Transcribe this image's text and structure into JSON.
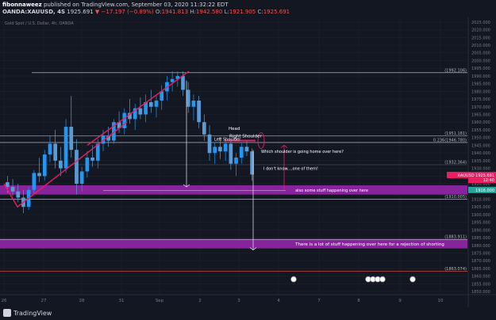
{
  "header": {
    "author": "fibonnaweez",
    "published": "published on TradingView.com, September 03, 2020 11:32:22 EDT",
    "symbol": "OANDA:XAUUSD, 4S",
    "price": "1925.691",
    "change": "▼ −17.197 (−0.89%)",
    "o_label": "O:",
    "o_value": "1941.813",
    "h_label": "H:",
    "h_value": "1942.580",
    "l_label": "L:",
    "l_value": "1921.905",
    "c_label": "C:",
    "c_value": "1925.691"
  },
  "chart_data": {
    "type": "candlestick",
    "title": "Gold Spot / U.S. Dollar, 4h, OANDA",
    "x_labels": [
      "26",
      "27",
      "28",
      "31",
      "Sep",
      "2",
      "3",
      "4",
      "7",
      "8",
      "9",
      "10"
    ],
    "y_ticks": [
      1850,
      1855,
      1860,
      1865,
      1870,
      1875,
      1880,
      1885,
      1890,
      1895,
      1900,
      1905,
      1910,
      1915,
      1920,
      1925,
      1930,
      1935,
      1940,
      1945,
      1950,
      1955,
      1960,
      1965,
      1970,
      1975,
      1980,
      1985,
      1990,
      1995,
      2000,
      2005,
      2010,
      2015,
      2020,
      2025
    ],
    "ylim": [
      1848,
      2028
    ],
    "grid": true,
    "levels": [
      {
        "price": 1992.106,
        "label": "(1992.106)"
      },
      {
        "price": 1951.181,
        "label": "(1951.181)"
      },
      {
        "price": 1946.78,
        "label": "0.236(1946.780)"
      },
      {
        "price": 1932.364,
        "label": "(1932.364)"
      },
      {
        "price": 1910.005,
        "label": "(1910.005)"
      },
      {
        "price": 1883.911,
        "label": "(1883.911)"
      },
      {
        "price": 1863.074,
        "label": "(1863.074)"
      }
    ],
    "zones": [
      {
        "top": 1919,
        "bottom": 1913,
        "label": "also some stuff happening over here"
      },
      {
        "top": 1884,
        "bottom": 1878,
        "label": "There is a lot of stuff happening over here for a rejection of shorting"
      }
    ],
    "annotations": [
      {
        "text": "Head"
      },
      {
        "text": "Right Shoulder"
      },
      {
        "text": "Left Shoulder"
      },
      {
        "text": "Which shoulder is going home over here?"
      },
      {
        "text": "I don't know....one of them!"
      }
    ],
    "price_badges": [
      {
        "label": "XAUUSD",
        "value": "1925.691",
        "color": "#e91e63"
      },
      {
        "label": "",
        "value": "12:40",
        "color": "#e91e63"
      },
      {
        "label": "",
        "value": "1916.000",
        "color": "#26a69a"
      }
    ],
    "candles": [
      {
        "o": 1921,
        "h": 1925,
        "l": 1914,
        "c": 1918
      },
      {
        "o": 1918,
        "h": 1923,
        "l": 1912,
        "c": 1915
      },
      {
        "o": 1915,
        "h": 1920,
        "l": 1908,
        "c": 1911
      },
      {
        "o": 1911,
        "h": 1916,
        "l": 1901,
        "c": 1905
      },
      {
        "o": 1905,
        "h": 1918,
        "l": 1903,
        "c": 1916
      },
      {
        "o": 1916,
        "h": 1929,
        "l": 1914,
        "c": 1927
      },
      {
        "o": 1927,
        "h": 1937,
        "l": 1921,
        "c": 1925
      },
      {
        "o": 1925,
        "h": 1942,
        "l": 1922,
        "c": 1939
      },
      {
        "o": 1939,
        "h": 1951,
        "l": 1934,
        "c": 1946
      },
      {
        "o": 1946,
        "h": 1955,
        "l": 1930,
        "c": 1935
      },
      {
        "o": 1935,
        "h": 1944,
        "l": 1925,
        "c": 1930
      },
      {
        "o": 1930,
        "h": 1962,
        "l": 1927,
        "c": 1957
      },
      {
        "o": 1957,
        "h": 1977,
        "l": 1937,
        "c": 1942
      },
      {
        "o": 1942,
        "h": 1949,
        "l": 1913,
        "c": 1920
      },
      {
        "o": 1920,
        "h": 1931,
        "l": 1915,
        "c": 1928
      },
      {
        "o": 1928,
        "h": 1941,
        "l": 1924,
        "c": 1937
      },
      {
        "o": 1937,
        "h": 1945,
        "l": 1931,
        "c": 1935
      },
      {
        "o": 1935,
        "h": 1949,
        "l": 1930,
        "c": 1946
      },
      {
        "o": 1946,
        "h": 1955,
        "l": 1941,
        "c": 1951
      },
      {
        "o": 1951,
        "h": 1957,
        "l": 1944,
        "c": 1948
      },
      {
        "o": 1948,
        "h": 1962,
        "l": 1946,
        "c": 1960
      },
      {
        "o": 1960,
        "h": 1967,
        "l": 1953,
        "c": 1956
      },
      {
        "o": 1956,
        "h": 1969,
        "l": 1952,
        "c": 1966
      },
      {
        "o": 1966,
        "h": 1975,
        "l": 1959,
        "c": 1962
      },
      {
        "o": 1962,
        "h": 1972,
        "l": 1955,
        "c": 1969
      },
      {
        "o": 1969,
        "h": 1976,
        "l": 1962,
        "c": 1965
      },
      {
        "o": 1965,
        "h": 1978,
        "l": 1960,
        "c": 1973
      },
      {
        "o": 1973,
        "h": 1981,
        "l": 1966,
        "c": 1970
      },
      {
        "o": 1970,
        "h": 1977,
        "l": 1963,
        "c": 1974
      },
      {
        "o": 1974,
        "h": 1984,
        "l": 1968,
        "c": 1980
      },
      {
        "o": 1980,
        "h": 1990,
        "l": 1974,
        "c": 1986
      },
      {
        "o": 1986,
        "h": 1993,
        "l": 1980,
        "c": 1988
      },
      {
        "o": 1988,
        "h": 1993,
        "l": 1983,
        "c": 1990
      },
      {
        "o": 1990,
        "h": 1993,
        "l": 1977,
        "c": 1981
      },
      {
        "o": 1981,
        "h": 1986,
        "l": 1966,
        "c": 1970
      },
      {
        "o": 1970,
        "h": 1978,
        "l": 1961,
        "c": 1974
      },
      {
        "o": 1974,
        "h": 1977,
        "l": 1956,
        "c": 1960
      },
      {
        "o": 1960,
        "h": 1965,
        "l": 1948,
        "c": 1952
      },
      {
        "o": 1952,
        "h": 1958,
        "l": 1935,
        "c": 1940
      },
      {
        "o": 1940,
        "h": 1947,
        "l": 1933,
        "c": 1944
      },
      {
        "o": 1944,
        "h": 1950,
        "l": 1936,
        "c": 1941
      },
      {
        "o": 1941,
        "h": 1948,
        "l": 1935,
        "c": 1946
      },
      {
        "o": 1946,
        "h": 1949,
        "l": 1929,
        "c": 1933
      },
      {
        "o": 1933,
        "h": 1940,
        "l": 1925,
        "c": 1937
      },
      {
        "o": 1937,
        "h": 1947,
        "l": 1933,
        "c": 1944
      },
      {
        "o": 1944,
        "h": 1948,
        "l": 1938,
        "c": 1941
      },
      {
        "o": 1941,
        "h": 1943,
        "l": 1922,
        "c": 1926
      }
    ]
  },
  "footer": {
    "brand": "TradingView"
  }
}
